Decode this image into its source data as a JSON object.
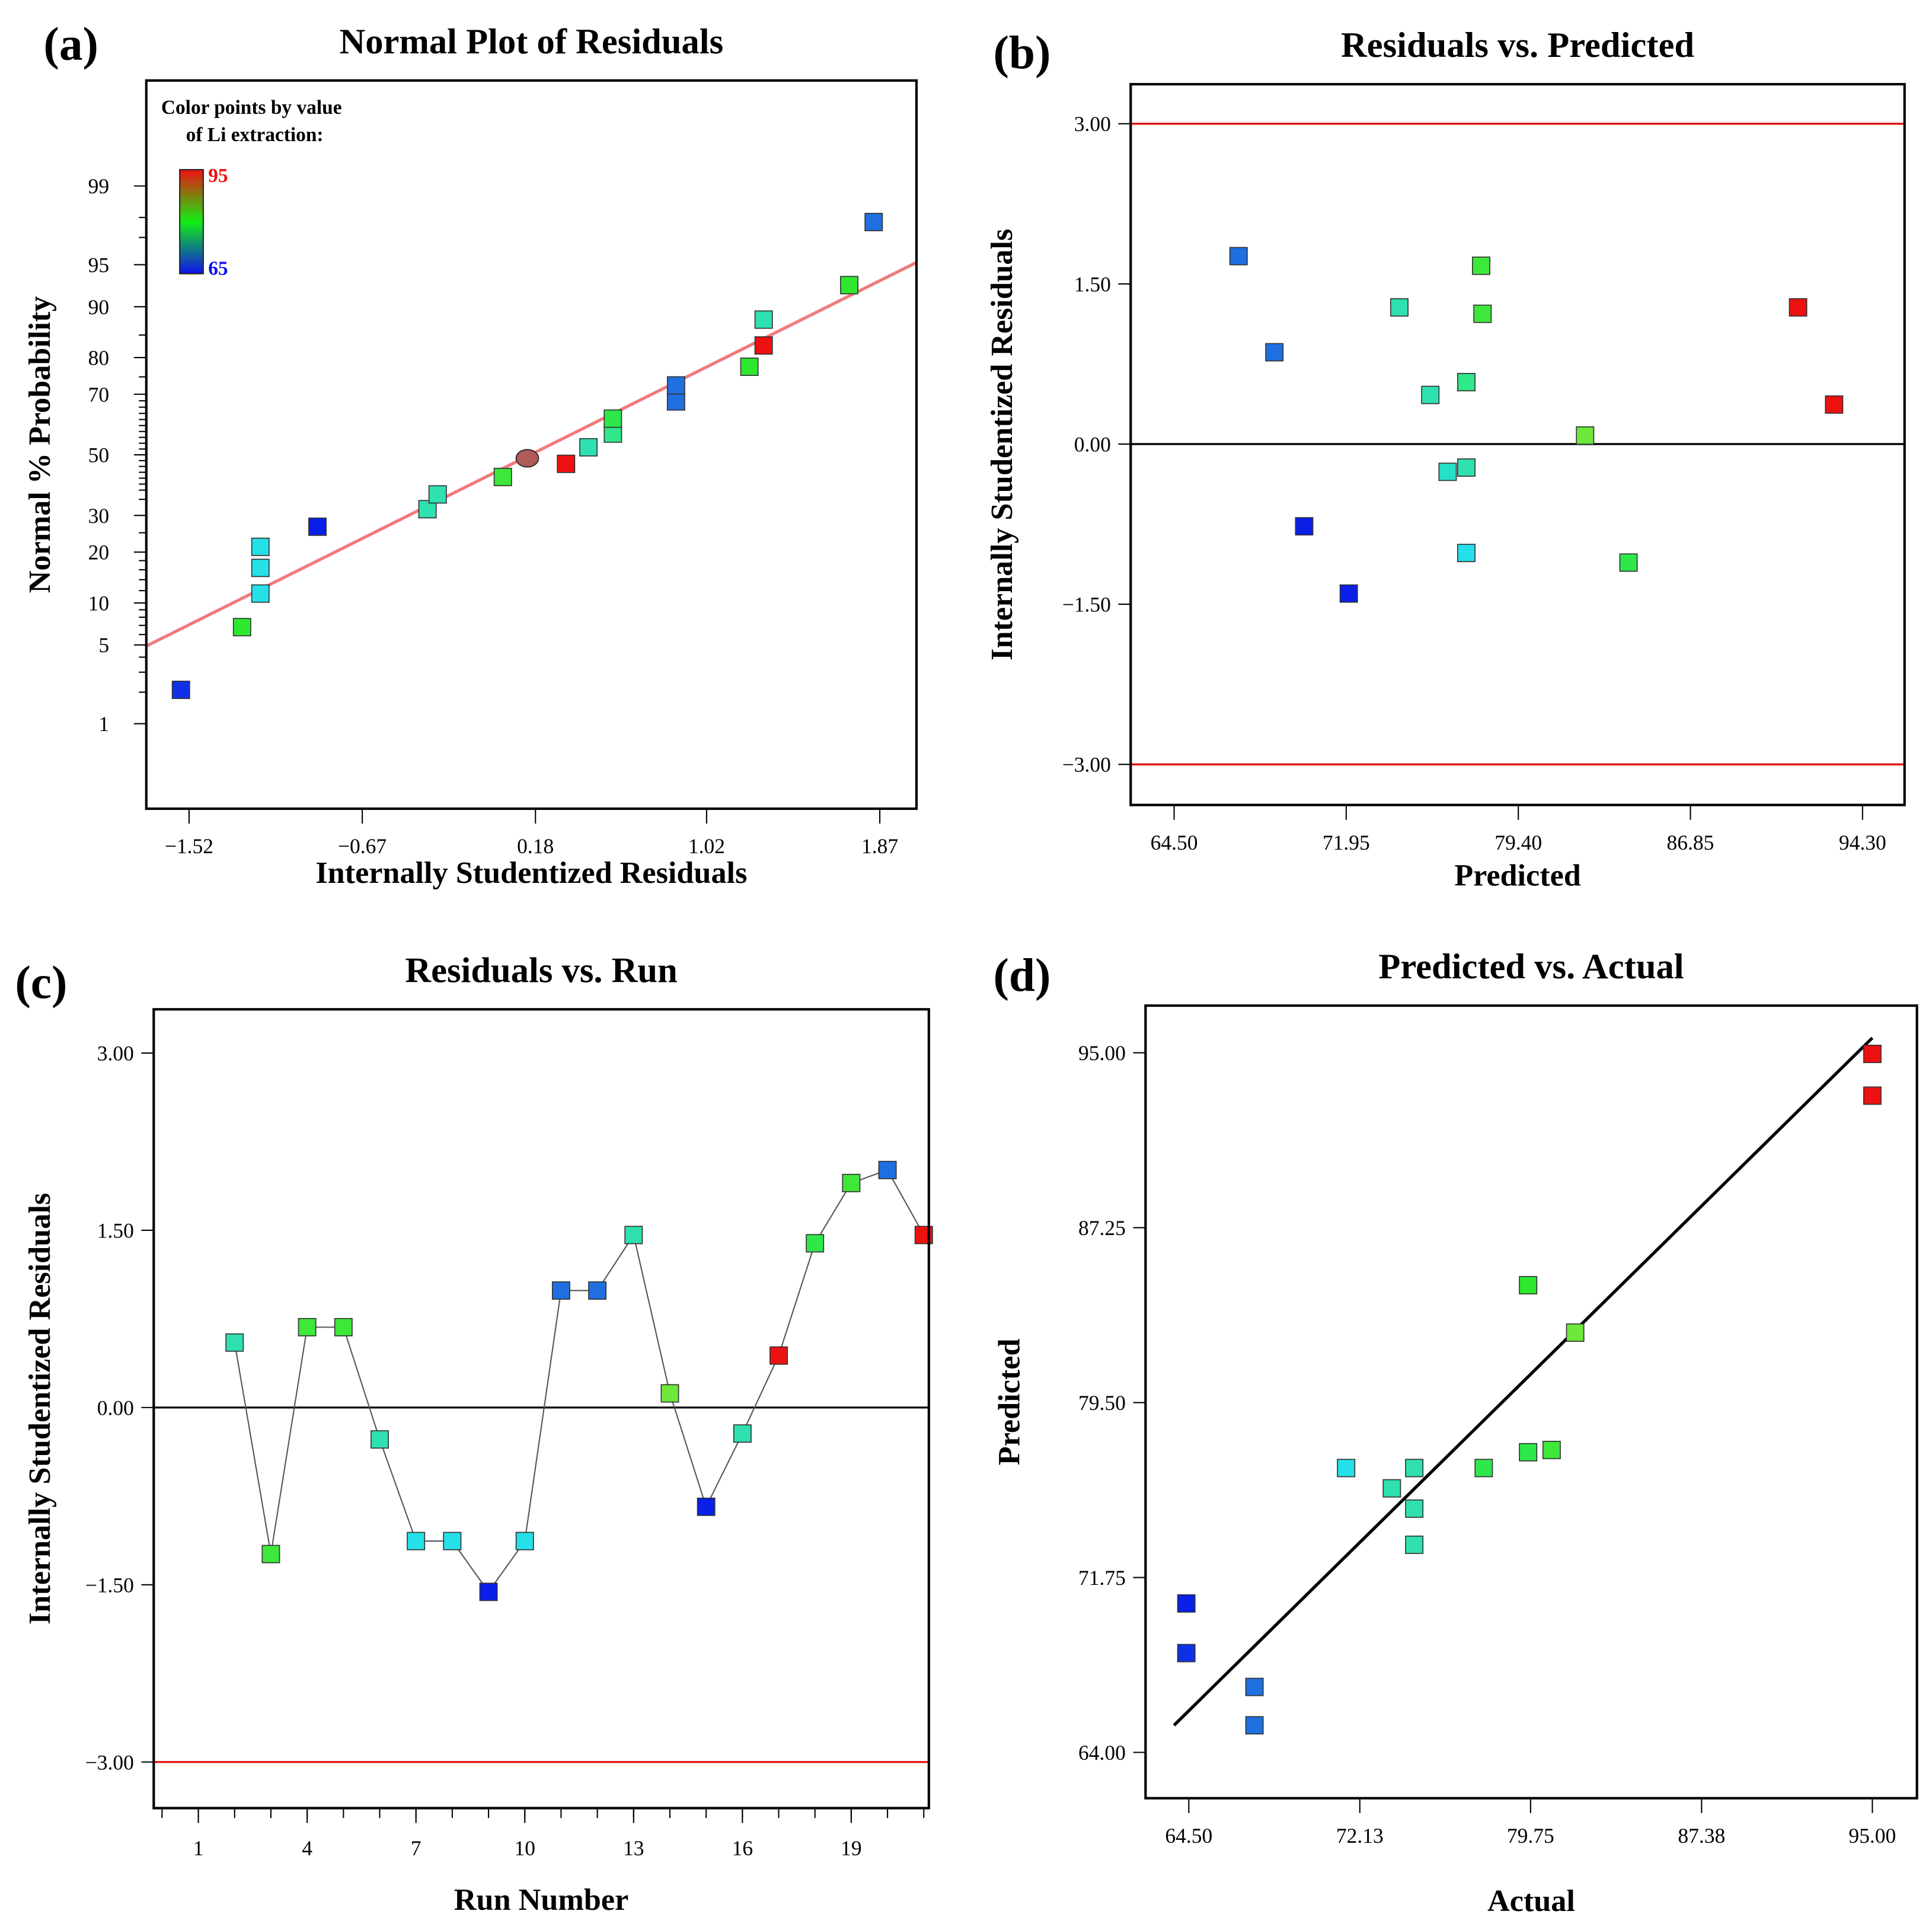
{
  "colorbar": {
    "title_line1": "Color points by value",
    "title_line2": "of Li extraction:",
    "max_label": "95",
    "min_label": "65",
    "max_color": "#ee1111",
    "mid_color": "#11ee11",
    "min_color": "#1111ee"
  },
  "chart_data": [
    {
      "panel": "(a)",
      "type": "scatter",
      "title": "Normal Plot of Residuals",
      "xlabel": "Internally Studentized Residuals",
      "ylabel": "Normal % Probability",
      "yscale": "normal-probability",
      "xlim": [
        -1.73,
        2.05
      ],
      "ylim": [
        0.11,
        99.94
      ],
      "xticks": [
        "−1.52",
        "−0.67",
        "0.18",
        "1.02",
        "1.87"
      ],
      "yticks": [
        "1",
        "5",
        "10",
        "20",
        "30",
        "50",
        "70",
        "80",
        "90",
        "95",
        "99"
      ],
      "fit_line": {
        "color": "#f07b7b",
        "points": [
          [
            -1.73,
            4.9
          ],
          [
            2.05,
            95.2
          ]
        ]
      },
      "points": [
        {
          "x": -1.56,
          "y": 2.1,
          "color": "#1030e8"
        },
        {
          "x": -1.26,
          "y": 6.8,
          "color": "#2ee82e"
        },
        {
          "x": -1.17,
          "y": 11.5,
          "color": "#25e0e8"
        },
        {
          "x": -1.17,
          "y": 16.4,
          "color": "#25e0e8"
        },
        {
          "x": -1.17,
          "y": 21.3,
          "color": "#25e0e8"
        },
        {
          "x": -0.89,
          "y": 26.7,
          "color": "#0a1fe8"
        },
        {
          "x": -0.35,
          "y": 31.9,
          "color": "#2fe0b0"
        },
        {
          "x": -0.3,
          "y": 36.6,
          "color": "#2fe0b0"
        },
        {
          "x": 0.02,
          "y": 42.4,
          "color": "#3ee83a"
        },
        {
          "x": 0.14,
          "y": 48.8,
          "color": "#b05a5a",
          "shape": "ellipse"
        },
        {
          "x": 0.33,
          "y": 46.9,
          "color": "#ee1111"
        },
        {
          "x": 0.44,
          "y": 52.6,
          "color": "#2fe0b0"
        },
        {
          "x": 0.56,
          "y": 57.3,
          "color": "#2ee88a"
        },
        {
          "x": 0.56,
          "y": 62.3,
          "color": "#2ee84a"
        },
        {
          "x": 0.87,
          "y": 67.8,
          "color": "#1f6fe0"
        },
        {
          "x": 0.87,
          "y": 72.6,
          "color": "#1f6fe0"
        },
        {
          "x": 1.23,
          "y": 77.7,
          "color": "#2ee82e"
        },
        {
          "x": 1.3,
          "y": 82.8,
          "color": "#ee1111"
        },
        {
          "x": 1.3,
          "y": 87.9,
          "color": "#2fe0b0"
        },
        {
          "x": 1.72,
          "y": 92.9,
          "color": "#2ee82e"
        },
        {
          "x": 1.84,
          "y": 97.8,
          "color": "#1f6fe0"
        }
      ]
    },
    {
      "panel": "(b)",
      "type": "scatter",
      "title": "Residuals vs. Predicted",
      "xlabel": "Predicted",
      "ylabel": "Internally Studentized Residuals",
      "xlim": [
        62.62,
        96.12
      ],
      "ylim": [
        -3.38,
        3.37
      ],
      "xticks": [
        "64.50",
        "71.95",
        "79.40",
        "86.85",
        "94.30"
      ],
      "yticks": [
        "3.00",
        "1.50",
        "0.00",
        "−1.50",
        "−3.00"
      ],
      "ref_lines": [
        {
          "y": 3.0,
          "color": "#e01010"
        },
        {
          "y": 0.0,
          "color": "#000000"
        },
        {
          "y": -3.0,
          "color": "#e01010"
        }
      ],
      "points": [
        {
          "x": 67.29,
          "y": 1.76,
          "color": "#1f6fe0"
        },
        {
          "x": 68.84,
          "y": 0.86,
          "color": "#1f6fe0"
        },
        {
          "x": 70.13,
          "y": -0.77,
          "color": "#0a1fe8"
        },
        {
          "x": 72.06,
          "y": -1.4,
          "color": "#0a1fe8"
        },
        {
          "x": 74.25,
          "y": 1.28,
          "color": "#2fe0b0"
        },
        {
          "x": 75.59,
          "y": 0.46,
          "color": "#2fe0b0"
        },
        {
          "x": 76.34,
          "y": -0.26,
          "color": "#25e0c8"
        },
        {
          "x": 77.15,
          "y": -0.22,
          "color": "#2fe0b0"
        },
        {
          "x": 77.15,
          "y": 0.58,
          "color": "#2ee88a"
        },
        {
          "x": 77.15,
          "y": -1.02,
          "color": "#25e0e8"
        },
        {
          "x": 77.79,
          "y": 1.67,
          "color": "#3ee83a"
        },
        {
          "x": 77.85,
          "y": 1.22,
          "color": "#3ee83a"
        },
        {
          "x": 82.29,
          "y": 0.08,
          "color": "#6ee83a"
        },
        {
          "x": 84.17,
          "y": -1.11,
          "color": "#2ee84a"
        },
        {
          "x": 91.51,
          "y": 1.28,
          "color": "#ee1111"
        },
        {
          "x": 93.07,
          "y": 0.37,
          "color": "#ee1111"
        }
      ]
    },
    {
      "panel": "(c)",
      "type": "line",
      "title": "Residuals vs. Run",
      "xlabel": "Run Number",
      "ylabel": "Internally Studentized Residuals",
      "xlim": [
        -0.23,
        21.14
      ],
      "ylim": [
        -3.39,
        3.37
      ],
      "xticks": [
        "1",
        "4",
        "7",
        "10",
        "13",
        "16",
        "19"
      ],
      "yticks": [
        "3.00",
        "1.50",
        "0.00",
        "−1.50",
        "−3.00"
      ],
      "ref_lines": [
        {
          "y": 0.0,
          "color": "#000000"
        },
        {
          "y": -3.0,
          "color": "#e01010"
        }
      ],
      "connect": true,
      "points": [
        {
          "x": 2,
          "y": 0.55,
          "color": "#2fe0b0"
        },
        {
          "x": 3,
          "y": -1.24,
          "color": "#3ee83a"
        },
        {
          "x": 4,
          "y": 0.68,
          "color": "#3ee83a"
        },
        {
          "x": 5,
          "y": 0.68,
          "color": "#3ee83a"
        },
        {
          "x": 6,
          "y": -0.27,
          "color": "#2fe0b0"
        },
        {
          "x": 7,
          "y": -1.13,
          "color": "#25e0e8"
        },
        {
          "x": 8,
          "y": -1.13,
          "color": "#25e0e8"
        },
        {
          "x": 9,
          "y": -1.56,
          "color": "#0a1fe8"
        },
        {
          "x": 10,
          "y": -1.13,
          "color": "#25e0e8"
        },
        {
          "x": 11,
          "y": 0.99,
          "color": "#1f6fe0"
        },
        {
          "x": 12,
          "y": 0.99,
          "color": "#1f6fe0"
        },
        {
          "x": 13,
          "y": 1.46,
          "color": "#2fe0b0"
        },
        {
          "x": 14,
          "y": 0.12,
          "color": "#6ee83a"
        },
        {
          "x": 15,
          "y": -0.84,
          "color": "#0a1fe8"
        },
        {
          "x": 16,
          "y": -0.22,
          "color": "#2fe0b0"
        },
        {
          "x": 17,
          "y": 0.44,
          "color": "#ee1111"
        },
        {
          "x": 18,
          "y": 1.39,
          "color": "#2ee84a"
        },
        {
          "x": 19,
          "y": 1.9,
          "color": "#3ee83a"
        },
        {
          "x": 20,
          "y": 2.01,
          "color": "#1f6fe0"
        },
        {
          "x": 21,
          "y": 1.46,
          "color": "#ee1111"
        }
      ]
    },
    {
      "panel": "(d)",
      "type": "scatter",
      "title": "Predicted vs. Actual",
      "xlabel": "Actual",
      "ylabel": "Predicted",
      "xlim": [
        62.57,
        96.99
      ],
      "ylim": [
        61.97,
        97.09
      ],
      "xticks": [
        "64.50",
        "72.13",
        "79.75",
        "87.38",
        "95.00"
      ],
      "yticks": [
        "95.00",
        "87.25",
        "79.50",
        "71.75",
        "64.00"
      ],
      "fit_line": {
        "color": "#000000",
        "points": [
          [
            63.84,
            65.2
          ],
          [
            95.0,
            95.66
          ]
        ]
      },
      "points": [
        {
          "x": 64.39,
          "y": 70.6,
          "color": "#0a1fe8"
        },
        {
          "x": 64.39,
          "y": 68.4,
          "color": "#1030e8"
        },
        {
          "x": 67.43,
          "y": 66.9,
          "color": "#1f6fe0"
        },
        {
          "x": 67.43,
          "y": 65.2,
          "color": "#1f6fe0"
        },
        {
          "x": 71.52,
          "y": 76.6,
          "color": "#25e0e8"
        },
        {
          "x": 73.56,
          "y": 75.7,
          "color": "#2fe0b0"
        },
        {
          "x": 74.56,
          "y": 76.6,
          "color": "#2fe0b0"
        },
        {
          "x": 74.56,
          "y": 74.8,
          "color": "#2fe0b0"
        },
        {
          "x": 74.56,
          "y": 73.2,
          "color": "#2fe0b0"
        },
        {
          "x": 77.66,
          "y": 76.6,
          "color": "#2ee84a"
        },
        {
          "x": 79.64,
          "y": 77.3,
          "color": "#2ee84a"
        },
        {
          "x": 80.69,
          "y": 77.4,
          "color": "#3ee83a"
        },
        {
          "x": 79.64,
          "y": 84.7,
          "color": "#2ee82e"
        },
        {
          "x": 81.74,
          "y": 82.6,
          "color": "#6ee83a"
        },
        {
          "x": 95.0,
          "y": 94.95,
          "color": "#ee1111"
        },
        {
          "x": 95.0,
          "y": 93.1,
          "color": "#ee1111"
        }
      ]
    }
  ]
}
